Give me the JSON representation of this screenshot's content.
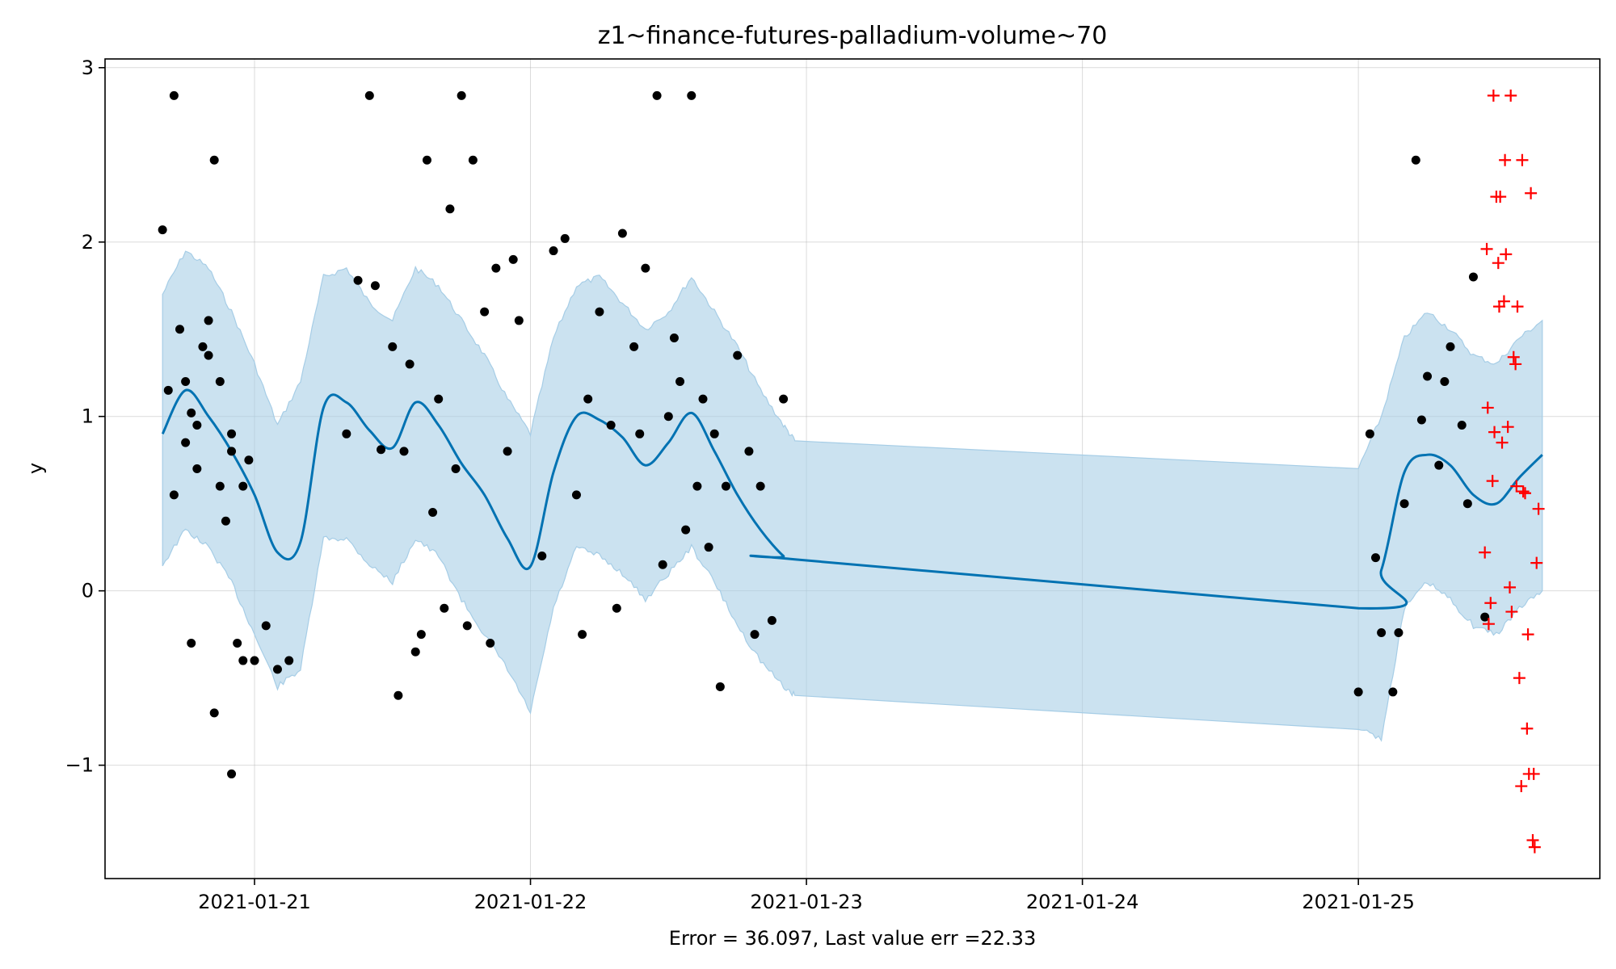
{
  "chart_data": {
    "type": "line",
    "title": "z1~finance-futures-palladium-volume~70",
    "xlabel": "Error = 36.097, Last value err =22.33",
    "ylabel": "y",
    "x_axis": "date",
    "xlim": [
      "2021-01-20 11:00",
      "2021-01-25 21:00"
    ],
    "ylim": [
      -1.65,
      3.05
    ],
    "x_ticks": [
      "2021-01-21",
      "2021-01-22",
      "2021-01-23",
      "2021-01-24",
      "2021-01-25"
    ],
    "y_ticks": [
      -1,
      0,
      1,
      2,
      3
    ],
    "y_tick_labels": [
      "−1",
      "0",
      "1",
      "2",
      "3"
    ],
    "grid": true,
    "colors": {
      "forecast": "#0072b2",
      "band": "#a6cde6",
      "observed": "#000000",
      "test": "#ff0000"
    },
    "series": [
      {
        "role": "forecast",
        "x": [
          "2021-01-20 16:00",
          "2021-01-20 18:00",
          "2021-01-20 20:00",
          "2021-01-20 22:00",
          "2021-01-21 00:00",
          "2021-01-21 02:00",
          "2021-01-21 04:00",
          "2021-01-21 06:00",
          "2021-01-21 08:00",
          "2021-01-21 10:00",
          "2021-01-21 12:00",
          "2021-01-21 14:00",
          "2021-01-21 16:00",
          "2021-01-21 18:00",
          "2021-01-21 20:00",
          "2021-01-21 22:00",
          "2021-01-22 00:00",
          "2021-01-22 02:00",
          "2021-01-22 04:00",
          "2021-01-22 06:00",
          "2021-01-22 08:00",
          "2021-01-22 10:00",
          "2021-01-22 12:00",
          "2021-01-22 14:00",
          "2021-01-22 16:00",
          "2021-01-22 18:00",
          "2021-01-22 20:00",
          "2021-01-22 22:00",
          "2021-01-22 23:00",
          "2021-01-25 00:00",
          "2021-01-25 02:00",
          "2021-01-25 04:00",
          "2021-01-25 06:00",
          "2021-01-25 08:00",
          "2021-01-25 10:00",
          "2021-01-25 12:00",
          "2021-01-25 14:00",
          "2021-01-25 16:00"
        ],
        "y": [
          0.9,
          1.15,
          1.0,
          0.8,
          0.55,
          0.22,
          0.28,
          1.05,
          1.08,
          0.92,
          0.82,
          1.08,
          0.95,
          0.73,
          0.55,
          0.3,
          0.14,
          0.68,
          1.0,
          0.98,
          0.88,
          0.72,
          0.85,
          1.02,
          0.8,
          0.55,
          0.35,
          0.2,
          0.18,
          -0.1,
          0.12,
          0.68,
          0.78,
          0.72,
          0.55,
          0.5,
          0.65,
          0.78
        ]
      },
      {
        "role": "interval",
        "x": [
          "2021-01-20 16:00",
          "2021-01-20 18:00",
          "2021-01-20 20:00",
          "2021-01-20 22:00",
          "2021-01-21 00:00",
          "2021-01-21 02:00",
          "2021-01-21 04:00",
          "2021-01-21 06:00",
          "2021-01-21 08:00",
          "2021-01-21 10:00",
          "2021-01-21 12:00",
          "2021-01-21 14:00",
          "2021-01-21 16:00",
          "2021-01-21 18:00",
          "2021-01-21 20:00",
          "2021-01-21 22:00",
          "2021-01-22 00:00",
          "2021-01-22 02:00",
          "2021-01-22 04:00",
          "2021-01-22 06:00",
          "2021-01-22 08:00",
          "2021-01-22 10:00",
          "2021-01-22 12:00",
          "2021-01-22 14:00",
          "2021-01-22 16:00",
          "2021-01-22 18:00",
          "2021-01-22 20:00",
          "2021-01-22 22:00",
          "2021-01-22 23:00",
          "2021-01-25 00:00",
          "2021-01-25 02:00",
          "2021-01-25 04:00",
          "2021-01-25 06:00",
          "2021-01-25 08:00",
          "2021-01-25 10:00",
          "2021-01-25 12:00",
          "2021-01-25 14:00",
          "2021-01-25 16:00"
        ],
        "upper": [
          1.7,
          1.95,
          1.85,
          1.6,
          1.3,
          0.95,
          1.2,
          1.8,
          1.85,
          1.65,
          1.55,
          1.85,
          1.75,
          1.55,
          1.35,
          1.1,
          0.9,
          1.45,
          1.75,
          1.8,
          1.65,
          1.5,
          1.6,
          1.8,
          1.6,
          1.4,
          1.15,
          0.95,
          0.86,
          0.7,
          1.0,
          1.45,
          1.6,
          1.5,
          1.35,
          1.3,
          1.45,
          1.55
        ],
        "lower": [
          0.15,
          0.35,
          0.25,
          0.05,
          -0.25,
          -0.55,
          -0.45,
          0.3,
          0.3,
          0.15,
          0.05,
          0.3,
          0.2,
          -0.05,
          -0.25,
          -0.45,
          -0.7,
          -0.1,
          0.25,
          0.2,
          0.1,
          -0.05,
          0.1,
          0.25,
          0.05,
          -0.2,
          -0.4,
          -0.55,
          -0.6,
          -0.78,
          -0.85,
          -0.1,
          0.05,
          -0.05,
          -0.2,
          -0.25,
          -0.1,
          0.0
        ]
      },
      {
        "role": "observed",
        "x": [
          "2021-01-20 16:00",
          "2021-01-20 16:30",
          "2021-01-20 17:00",
          "2021-01-20 17:30",
          "2021-01-20 18:00",
          "2021-01-20 18:30",
          "2021-01-20 19:00",
          "2021-01-20 19:30",
          "2021-01-20 20:00",
          "2021-01-20 20:30",
          "2021-01-20 21:00",
          "2021-01-20 21:30",
          "2021-01-20 22:00",
          "2021-01-20 22:30",
          "2021-01-20 23:00",
          "2021-01-20 23:30",
          "2021-01-20 17:00",
          "2021-01-20 18:00",
          "2021-01-20 19:00",
          "2021-01-20 20:00",
          "2021-01-20 21:00",
          "2021-01-20 22:00",
          "2021-01-20 23:00",
          "2021-01-20 18:30",
          "2021-01-20 20:30",
          "2021-01-20 22:00",
          "2021-01-21 00:00",
          "2021-01-21 01:00",
          "2021-01-21 02:00",
          "2021-01-21 03:00",
          "2021-01-21 08:00",
          "2021-01-21 09:00",
          "2021-01-21 10:00",
          "2021-01-21 11:00",
          "2021-01-21 12:00",
          "2021-01-21 13:00",
          "2021-01-21 14:00",
          "2021-01-21 15:00",
          "2021-01-21 16:00",
          "2021-01-21 17:00",
          "2021-01-21 18:00",
          "2021-01-21 19:00",
          "2021-01-21 20:00",
          "2021-01-21 21:00",
          "2021-01-21 22:00",
          "2021-01-21 23:00",
          "2021-01-21 10:30",
          "2021-01-21 12:30",
          "2021-01-21 14:30",
          "2021-01-21 16:30",
          "2021-01-21 18:30",
          "2021-01-21 20:30",
          "2021-01-21 22:30",
          "2021-01-21 13:30",
          "2021-01-21 15:30",
          "2021-01-21 17:30",
          "2021-01-22 01:00",
          "2021-01-22 02:00",
          "2021-01-22 03:00",
          "2021-01-22 04:00",
          "2021-01-22 05:00",
          "2021-01-22 06:00",
          "2021-01-22 07:00",
          "2021-01-22 08:00",
          "2021-01-22 09:00",
          "2021-01-22 10:00",
          "2021-01-22 11:00",
          "2021-01-22 12:00",
          "2021-01-22 13:00",
          "2021-01-22 14:00",
          "2021-01-22 15:00",
          "2021-01-22 16:00",
          "2021-01-22 17:00",
          "2021-01-22 18:00",
          "2021-01-22 19:00",
          "2021-01-22 20:00",
          "2021-01-22 21:00",
          "2021-01-22 22:00",
          "2021-01-22 04:30",
          "2021-01-22 07:30",
          "2021-01-22 09:30",
          "2021-01-22 12:30",
          "2021-01-22 14:30",
          "2021-01-22 16:30",
          "2021-01-22 19:30",
          "2021-01-22 11:30",
          "2021-01-22 13:30",
          "2021-01-22 15:30",
          "2021-01-25 00:00",
          "2021-01-25 01:00",
          "2021-01-25 02:00",
          "2021-01-25 03:00",
          "2021-01-25 04:00",
          "2021-01-25 05:00",
          "2021-01-25 06:00",
          "2021-01-25 07:00",
          "2021-01-25 08:00",
          "2021-01-25 09:00",
          "2021-01-25 10:00",
          "2021-01-25 11:00",
          "2021-01-25 01:30",
          "2021-01-25 03:30",
          "2021-01-25 05:30",
          "2021-01-25 07:30",
          "2021-01-25 09:30"
        ],
        "y": [
          2.07,
          1.15,
          2.84,
          1.5,
          1.2,
          1.02,
          0.95,
          1.4,
          1.55,
          2.47,
          0.6,
          0.4,
          0.8,
          -0.3,
          0.6,
          0.75,
          0.55,
          0.85,
          0.7,
          1.35,
          1.2,
          0.9,
          -0.4,
          -0.3,
          -0.7,
          -1.05,
          -0.4,
          -0.2,
          -0.45,
          -0.4,
          0.9,
          1.78,
          2.84,
          0.81,
          1.4,
          0.8,
          -0.35,
          2.47,
          1.1,
          2.19,
          2.84,
          2.47,
          1.6,
          1.85,
          0.8,
          1.55,
          1.75,
          -0.6,
          -0.25,
          -0.1,
          -0.2,
          -0.3,
          1.9,
          1.3,
          0.45,
          0.7,
          0.2,
          1.95,
          2.02,
          0.55,
          1.1,
          1.6,
          0.95,
          2.05,
          1.4,
          1.85,
          2.84,
          1.0,
          1.2,
          2.84,
          1.1,
          0.9,
          0.6,
          1.35,
          0.8,
          0.6,
          -0.17,
          1.1,
          -0.25,
          -0.1,
          0.9,
          1.45,
          0.6,
          -0.55,
          -0.25,
          0.15,
          0.35,
          0.25,
          -0.58,
          0.9,
          -0.24,
          -0.58,
          0.5,
          2.47,
          1.23,
          0.72,
          1.4,
          0.95,
          1.8,
          -0.15,
          0.19,
          -0.24,
          0.98,
          1.2,
          0.5
        ]
      },
      {
        "role": "test",
        "x": [
          "2021-01-25 11:00",
          "2021-01-25 11:15",
          "2021-01-25 11:30",
          "2021-01-25 11:45",
          "2021-01-25 12:00",
          "2021-01-25 12:15",
          "2021-01-25 12:30",
          "2021-01-25 12:45",
          "2021-01-25 13:00",
          "2021-01-25 13:15",
          "2021-01-25 13:30",
          "2021-01-25 13:45",
          "2021-01-25 14:00",
          "2021-01-25 14:15",
          "2021-01-25 14:30",
          "2021-01-25 14:45",
          "2021-01-25 15:00",
          "2021-01-25 15:15",
          "2021-01-25 15:30",
          "2021-01-25 11:10",
          "2021-01-25 11:40",
          "2021-01-25 12:10",
          "2021-01-25 12:40",
          "2021-01-25 13:10",
          "2021-01-25 13:40",
          "2021-01-25 14:10",
          "2021-01-25 14:40",
          "2021-01-25 15:10",
          "2021-01-25 15:40",
          "2021-01-25 11:20",
          "2021-01-25 11:50",
          "2021-01-25 12:20",
          "2021-01-25 12:50",
          "2021-01-25 13:20",
          "2021-01-25 13:50",
          "2021-01-25 14:20",
          "2021-01-25 14:50",
          "2021-01-25 15:20"
        ],
        "y": [
          0.22,
          1.05,
          -0.07,
          2.84,
          2.26,
          1.63,
          0.85,
          2.47,
          0.94,
          2.84,
          1.34,
          0.6,
          -0.5,
          2.47,
          0.56,
          -0.25,
          2.28,
          -1.05,
          0.16,
          1.96,
          0.63,
          1.88,
          1.66,
          0.02,
          1.3,
          -1.12,
          -0.79,
          -1.43,
          0.47,
          -0.19,
          0.91,
          2.26,
          1.93,
          -0.12,
          1.63,
          0.57,
          -1.05,
          -1.47
        ]
      }
    ]
  }
}
